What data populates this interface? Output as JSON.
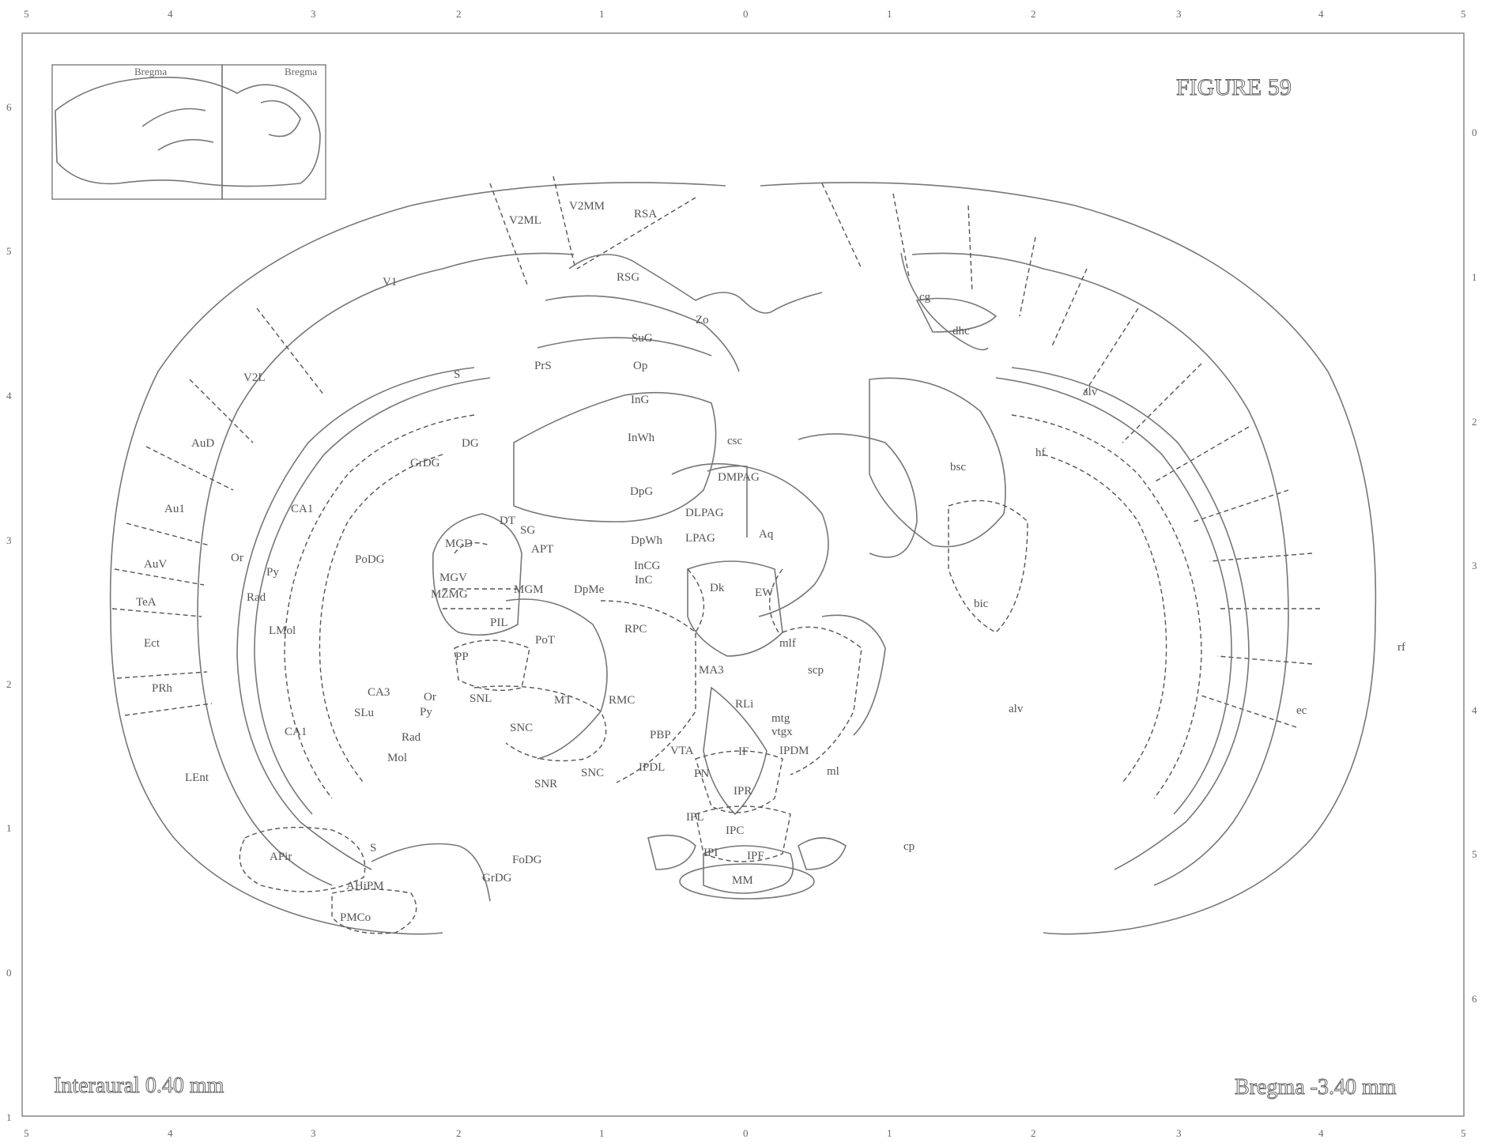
{
  "figure": {
    "title": "FIGURE 59"
  },
  "footer": {
    "interaural": "Interaural 0.40 mm",
    "bregma": "Bregma -3.40 mm"
  },
  "axes": {
    "top": [
      "5",
      "4",
      "3",
      "2",
      "1",
      "0",
      "1",
      "2",
      "3",
      "4",
      "5"
    ],
    "bottom": [
      "5",
      "4",
      "3",
      "2",
      "1",
      "0",
      "1",
      "2",
      "3",
      "4",
      "5"
    ],
    "left": [
      "6",
      "5",
      "4",
      "3",
      "2",
      "1",
      "0",
      "1"
    ],
    "right": [
      "0",
      "1",
      "2",
      "3",
      "4",
      "5",
      "6"
    ]
  },
  "inset": {
    "left_label": "Bregma",
    "right_label": "Bregma"
  },
  "labels": {
    "V1": "V1",
    "V2ML": "V2ML",
    "V2MM": "V2MM",
    "RSA": "RSA",
    "RSG": "RSG",
    "V2L": "V2L",
    "AuD": "AuD",
    "Au1": "Au1",
    "AuV": "AuV",
    "TeA": "TeA",
    "Ect": "Ect",
    "PRh": "PRh",
    "LEnt": "LEnt",
    "S_upper": "S",
    "PrS": "PrS",
    "SuG": "SuG",
    "Op": "Op",
    "InG": "InG",
    "InWh": "InWh",
    "csc": "csc",
    "DpG": "DpG",
    "DMPAG": "DMPAG",
    "DLPAG": "DLPAG",
    "LPAG": "LPAG",
    "Aq": "Aq",
    "DG": "DG",
    "GrDG": "GrDG",
    "CA1": "CA1",
    "Or": "Or",
    "Py": "Py",
    "Rad": "Rad",
    "LMol": "LMol",
    "PoDG": "PoDG",
    "DT": "DT",
    "SG": "SG",
    "APT": "APT",
    "MGD": "MGD",
    "MGV": "MGV",
    "MZMG": "MZMG",
    "MGM": "MGM",
    "PIL": "PIL",
    "PoT": "PoT",
    "PP": "PP",
    "DpWh": "DpWh",
    "InCG": "InCG",
    "InC": "InC",
    "Dk": "Dk",
    "EW": "EW",
    "DpMe": "DpMe",
    "RPC": "RPC",
    "mlf": "mlf",
    "MA3": "MA3",
    "scp": "scp",
    "RLi": "RLi",
    "RMC": "RMC",
    "MT": "MT",
    "SNL": "SNL",
    "SNC": "SNC",
    "SNR": "SNR",
    "SNC2": "SNC",
    "PBP": "PBP",
    "VTA": "VTA",
    "IPDL": "IPDL",
    "IF": "IF",
    "IPDM": "IPDM",
    "PN": "PN",
    "IPR": "IPR",
    "IPL": "IPL",
    "IPC": "IPC",
    "IPI": "IPI",
    "IPF": "IPF",
    "MM": "MM",
    "ml": "ml",
    "mtg": "mtg",
    "vtgx": "vtgx",
    "CA3": "CA3",
    "SLu": "SLu",
    "Or2": "Or",
    "Py2": "Py",
    "Rad2": "Rad",
    "Mol": "Mol",
    "CA1b": "CA1",
    "S_lower": "S",
    "APir": "APir",
    "AHiPM": "AHiPM",
    "PMCo": "PMCo",
    "FoDG": "FoDG",
    "GrDG2": "GrDG",
    "cg": "cg",
    "dhc": "dhc",
    "alv": "alv",
    "hf": "hf",
    "bsc": "bsc",
    "bic": "bic",
    "rf": "rf",
    "alv2": "alv",
    "ec": "ec",
    "ml2": "ml",
    "cp": "cp",
    "Zo": "Zo"
  }
}
